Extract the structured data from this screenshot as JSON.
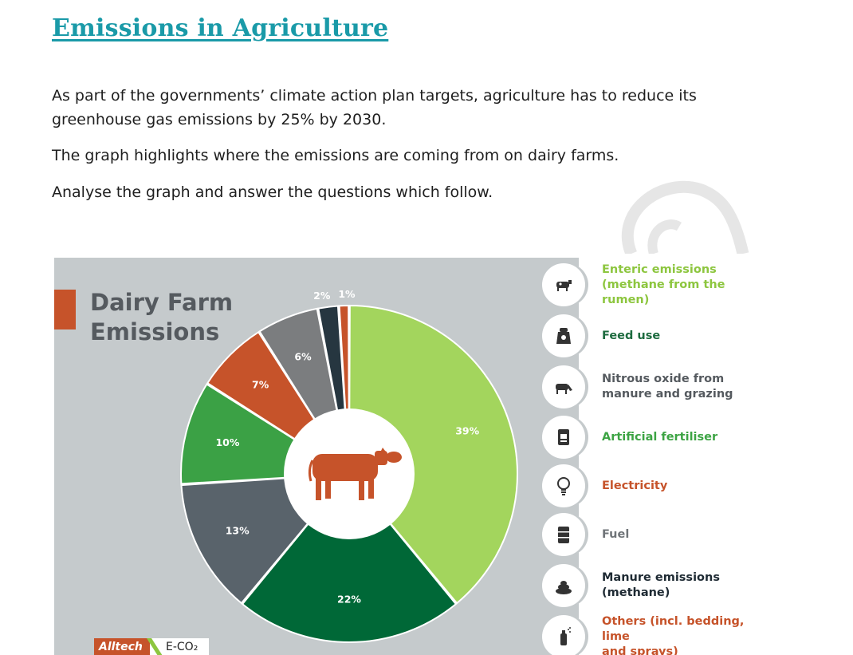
{
  "document": {
    "title": "Emissions in Agriculture",
    "paragraphs": [
      "As part of the governments’ climate action plan targets, agriculture has to reduce its greenhouse gas emissions by 25% by 2030.",
      "The graph highlights where the emissions are coming from on dairy farms.",
      "Analyse the graph and answer the questions which follow."
    ]
  },
  "infographic": {
    "heading_line1": "Dairy Farm",
    "heading_line2": "Emissions",
    "logo_brand": "Alltech",
    "logo_text": "E-CO₂",
    "center_icon": "cow-silhouette",
    "legend": [
      {
        "label": "Enteric emissions\n(methane from the rumen)",
        "icon": "cow-icon",
        "color": "#8dc63f"
      },
      {
        "label": "Feed use",
        "icon": "feed-bag-icon",
        "color": "#1d6b3f"
      },
      {
        "label": "Nitrous oxide from\nmanure and grazing",
        "icon": "grazing-cow-icon",
        "color": "#555a5f"
      },
      {
        "label": "Artificial fertiliser",
        "icon": "fertiliser-bag-icon",
        "color": "#3da444"
      },
      {
        "label": "Electricity",
        "icon": "lightbulb-icon",
        "color": "#c6532a"
      },
      {
        "label": "Fuel",
        "icon": "fuel-barrel-icon",
        "color": "#6f7478"
      },
      {
        "label": "Manure emissions\n(methane)",
        "icon": "manure-icon",
        "color": "#1e2a33"
      },
      {
        "label": "Others (incl. bedding, lime\nand sprays)",
        "icon": "spray-can-icon",
        "color": "#c6532a"
      }
    ]
  },
  "chart_data": {
    "type": "pie",
    "variant": "donut",
    "title": "Dairy Farm Emissions",
    "slices": [
      {
        "label": "39%",
        "value": 39,
        "color": "#a3d55d"
      },
      {
        "label": "22%",
        "value": 22,
        "color": "#006837"
      },
      {
        "label": "13%",
        "value": 13,
        "color": "#59636b"
      },
      {
        "label": "10%",
        "value": 10,
        "color": "#3ba145"
      },
      {
        "label": "7%",
        "value": 7,
        "color": "#c6532a"
      },
      {
        "label": "6%",
        "value": 6,
        "color": "#7b7d7f"
      },
      {
        "label": "2%",
        "value": 2,
        "color": "#263640"
      },
      {
        "label": "1%",
        "value": 1,
        "color": "#c6532a"
      }
    ]
  }
}
